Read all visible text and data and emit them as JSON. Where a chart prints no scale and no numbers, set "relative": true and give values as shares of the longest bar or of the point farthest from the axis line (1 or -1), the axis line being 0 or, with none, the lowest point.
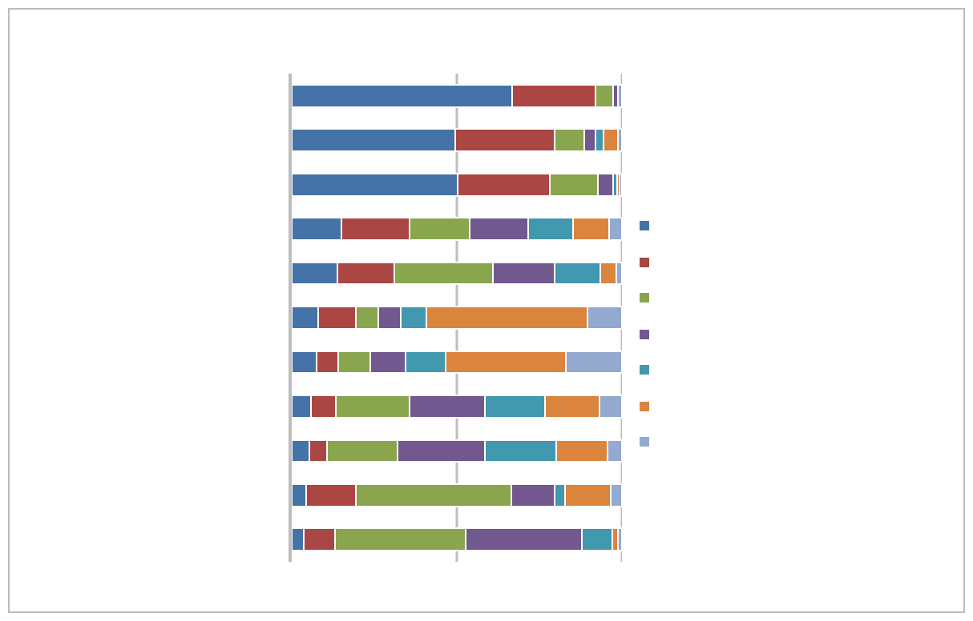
{
  "chart_data": {
    "type": "bar",
    "orientation": "horizontal",
    "stacked": true,
    "relative": true,
    "ref_lines": [
      {
        "axis": "x",
        "value": 0.5,
        "color": "#bdbdbd"
      },
      {
        "axis": "x",
        "value": 1,
        "color": "#bdbdbd"
      }
    ],
    "categories": [
      null,
      null,
      null,
      null,
      null,
      null,
      null,
      null,
      null,
      null,
      null
    ],
    "series": [
      {
        "color": "#4572a7",
        "values": [
          0.667,
          0.495,
          0.502,
          0.15,
          0.139,
          0.081,
          0.076,
          0.058,
          0.053,
          0.044,
          0.037
        ]
      },
      {
        "color": "#aa4643",
        "values": [
          0.252,
          0.301,
          0.28,
          0.206,
          0.172,
          0.113,
          0.065,
          0.076,
          0.053,
          0.149,
          0.094
        ]
      },
      {
        "color": "#89a54e",
        "values": [
          0.055,
          0.089,
          0.146,
          0.183,
          0.299,
          0.068,
          0.097,
          0.223,
          0.215,
          0.472,
          0.395
        ]
      },
      {
        "color": "#71588f",
        "values": [
          0.015,
          0.034,
          0.045,
          0.176,
          0.186,
          0.068,
          0.107,
          0.227,
          0.265,
          0.131,
          0.353
        ]
      },
      {
        "color": "#4198af",
        "values": [
          null,
          0.026,
          0.013,
          0.138,
          0.139,
          0.078,
          0.121,
          0.184,
          0.215,
          0.032,
          0.092
        ]
      },
      {
        "color": "#db843d",
        "values": [
          null,
          0.042,
          0.006,
          0.108,
          0.049,
          0.488,
          0.364,
          0.163,
          0.155,
          0.139,
          0.018
        ]
      },
      {
        "color": "#93a9cf",
        "values": [
          0.011,
          0.013,
          0.008,
          0.039,
          0.016,
          0.104,
          0.17,
          0.069,
          0.044,
          0.033,
          0.011
        ]
      }
    ]
  }
}
